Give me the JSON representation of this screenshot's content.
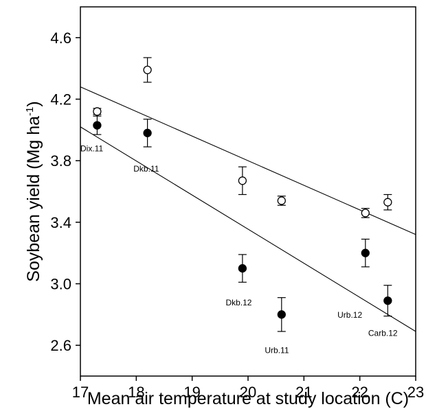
{
  "chart_data": {
    "type": "scatter",
    "xlabel": "Mean air temperature at study location (C)",
    "ylabel": {
      "main": "Soybean yield (Mg ha",
      "sup": "-1",
      "close": ")"
    },
    "xlim": [
      17,
      23
    ],
    "ylim": [
      2.4,
      4.8
    ],
    "xticks": [
      "17",
      "18",
      "19",
      "20",
      "21",
      "22",
      "23"
    ],
    "yticks": [
      "2.6",
      "3.0",
      "3.4",
      "3.8",
      "4.2",
      "4.6"
    ],
    "grid": false,
    "legend": "none",
    "series": [
      {
        "marker": "open-circle",
        "points": [
          {
            "x": 17.3,
            "y": 4.12,
            "err": 0.02
          },
          {
            "x": 18.2,
            "y": 4.39,
            "err": 0.08
          },
          {
            "x": 19.9,
            "y": 3.67,
            "err": 0.09
          },
          {
            "x": 20.6,
            "y": 3.54,
            "err": 0.03
          },
          {
            "x": 22.1,
            "y": 3.46,
            "err": 0.03
          },
          {
            "x": 22.5,
            "y": 3.53,
            "err": 0.05
          }
        ],
        "fit_line": {
          "x": [
            17,
            23
          ],
          "y": [
            4.28,
            3.32
          ]
        }
      },
      {
        "marker": "filled-circle",
        "points": [
          {
            "x": 17.3,
            "y": 4.03,
            "err": 0.06
          },
          {
            "x": 18.2,
            "y": 3.98,
            "err": 0.09
          },
          {
            "x": 19.9,
            "y": 3.1,
            "err": 0.09
          },
          {
            "x": 20.6,
            "y": 2.8,
            "err": 0.11
          },
          {
            "x": 22.1,
            "y": 3.2,
            "err": 0.09
          },
          {
            "x": 22.5,
            "y": 2.89,
            "err": 0.1
          }
        ],
        "fit_line": {
          "x": [
            17,
            23
          ],
          "y": [
            4.02,
            2.69
          ]
        }
      }
    ],
    "annotations": [
      {
        "text": "Dix.11",
        "x": 17.0,
        "y": 3.86
      },
      {
        "text": "Dkb.11",
        "x": 17.95,
        "y": 3.73
      },
      {
        "text": "Dkb.12",
        "x": 19.6,
        "y": 2.86
      },
      {
        "text": "Urb.11",
        "x": 20.3,
        "y": 2.55
      },
      {
        "text": "Urb.12",
        "x": 21.6,
        "y": 2.78
      },
      {
        "text": "Carb.12",
        "x": 22.15,
        "y": 2.66
      }
    ]
  }
}
